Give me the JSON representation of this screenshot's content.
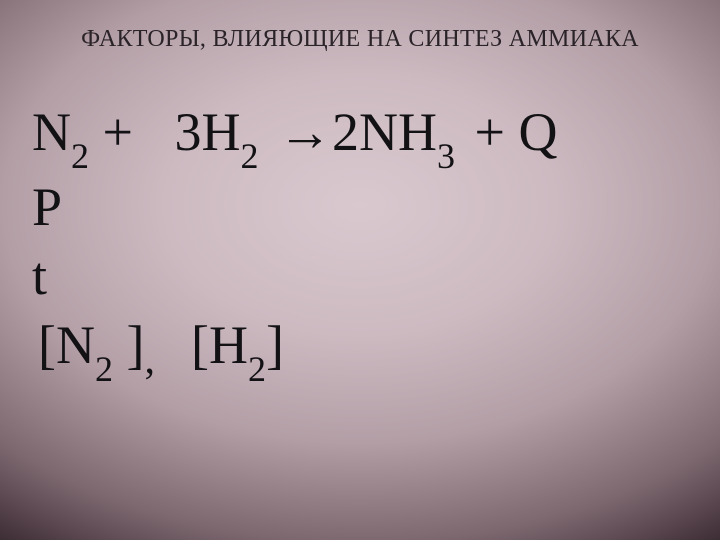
{
  "slide": {
    "background": {
      "type": "radial-gradient",
      "center_color": "#d9c9cf",
      "mid_color": "#b39ea6",
      "edge_color": "#2a1e24"
    },
    "title": {
      "text": "ФАКТОРЫ, ВЛИЯЮЩИЕ НА СИНТЕЗ АММИАКА",
      "fontsize": 24,
      "color": "#2a2328",
      "font_family": "Times New Roman"
    },
    "body": {
      "fontsize": 54,
      "sub_fontsize": 36,
      "color": "#121114",
      "font_family": "Times New Roman",
      "equation": {
        "terms": [
          {
            "base": "N",
            "sub": "2"
          },
          {
            "op": "+"
          },
          {
            "coef": "3",
            "base": "H",
            "sub": "2"
          },
          {
            "op_arrow": "→"
          },
          {
            "coef": "2",
            "base": "NH",
            "sub": "3"
          },
          {
            "op": "+"
          },
          {
            "base": "Q"
          }
        ]
      },
      "line2": "P",
      "line3": "t",
      "line4": {
        "parts": [
          {
            "open": "[",
            "base": "N",
            "sub": "2",
            "close_withspace": " ]"
          },
          {
            "comma": ","
          },
          {
            "open": "[",
            "base": "H",
            "sub": "2",
            "close": "]"
          }
        ]
      }
    }
  }
}
